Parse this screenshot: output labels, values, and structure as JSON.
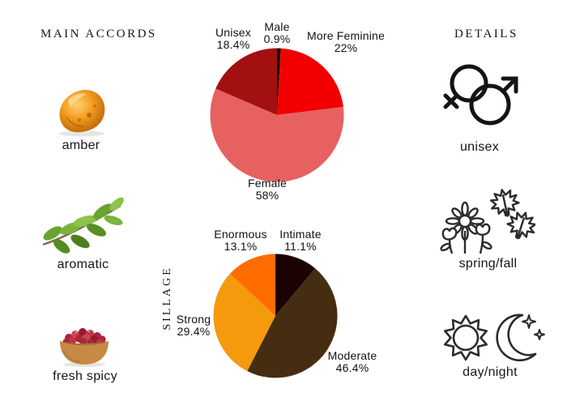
{
  "main_accords": {
    "title": "MAIN ACCORDS",
    "items": [
      {
        "label": "amber",
        "icon": "amber-resin-image"
      },
      {
        "label": "aromatic",
        "icon": "herb-sprig-image"
      },
      {
        "label": "fresh spicy",
        "icon": "berry-bowl-image"
      }
    ]
  },
  "details": {
    "title": "DETAILS",
    "items": [
      {
        "label": "unisex",
        "icon": "unisex-gender-icon"
      },
      {
        "label": "spring/fall",
        "icon": "spring-fall-icon"
      },
      {
        "label": "day/night",
        "icon": "day-night-icon"
      }
    ]
  },
  "chart_data": [
    {
      "type": "pie",
      "name": "gender",
      "title": "",
      "labels": [
        "Male",
        "More Feminine",
        "Female",
        "Unisex"
      ],
      "pct_labels": [
        "0.9%",
        "22%",
        "58%",
        "18.4%"
      ],
      "values": [
        0.9,
        22,
        58,
        18.4
      ],
      "colors": [
        "#190404",
        "#f20000",
        "#e86161",
        "#a31010"
      ],
      "start_angle_deg": 0,
      "direction": "clockwise",
      "legend": "none",
      "labels_position": "outside"
    },
    {
      "type": "pie",
      "name": "sillage",
      "title": "SILLAGE",
      "labels": [
        "Intimate",
        "Moderate",
        "Strong",
        "Enormous"
      ],
      "pct_labels": [
        "11.1%",
        "46.4%",
        "29.4%",
        "13.1%"
      ],
      "values": [
        11.1,
        46.4,
        29.4,
        13.1
      ],
      "colors": [
        "#1c0303",
        "#452d12",
        "#f49a0c",
        "#ff6d00"
      ],
      "start_angle_deg": 0,
      "direction": "clockwise",
      "legend": "none",
      "labels_position": "outside"
    }
  ]
}
